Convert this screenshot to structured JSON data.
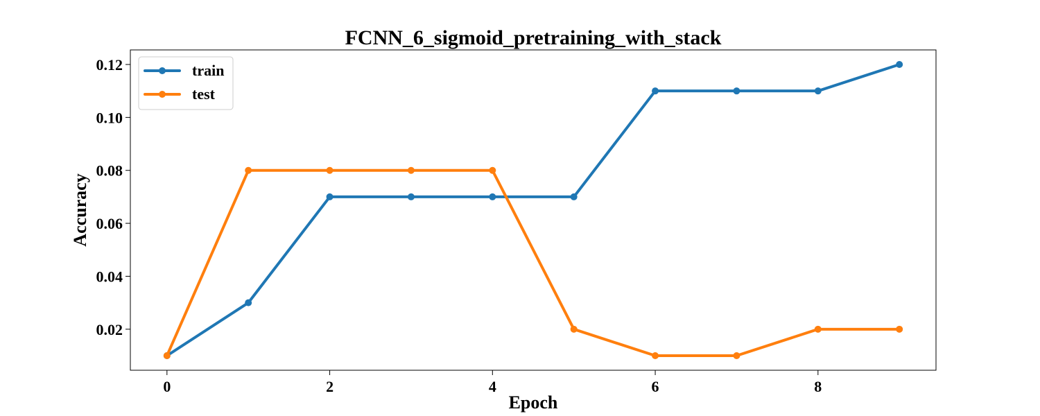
{
  "chart_data": {
    "type": "line",
    "title": "FCNN_6_sigmoid_pretraining_with_stack",
    "xlabel": "Epoch",
    "ylabel": "Accuracy",
    "xlim": [
      -0.45,
      9.45
    ],
    "ylim": [
      0.0045,
      0.1255
    ],
    "x_ticks": [
      0,
      2,
      4,
      6,
      8
    ],
    "y_ticks": [
      0.02,
      0.04,
      0.06,
      0.08,
      0.1,
      0.12
    ],
    "y_tick_labels": [
      "0.02",
      "0.04",
      "0.06",
      "0.08",
      "0.10",
      "0.12"
    ],
    "grid": false,
    "legend_position": "top-left",
    "x": [
      0,
      1,
      2,
      3,
      4,
      5,
      6,
      7,
      8,
      9
    ],
    "series": [
      {
        "name": "train",
        "color": "#1f77b4",
        "values": [
          0.01,
          0.03,
          0.07,
          0.07,
          0.07,
          0.07,
          0.11,
          0.11,
          0.11,
          0.12
        ]
      },
      {
        "name": "test",
        "color": "#ff7f0e",
        "values": [
          0.01,
          0.08,
          0.08,
          0.08,
          0.08,
          0.02,
          0.01,
          0.01,
          0.02,
          0.02
        ]
      }
    ]
  }
}
